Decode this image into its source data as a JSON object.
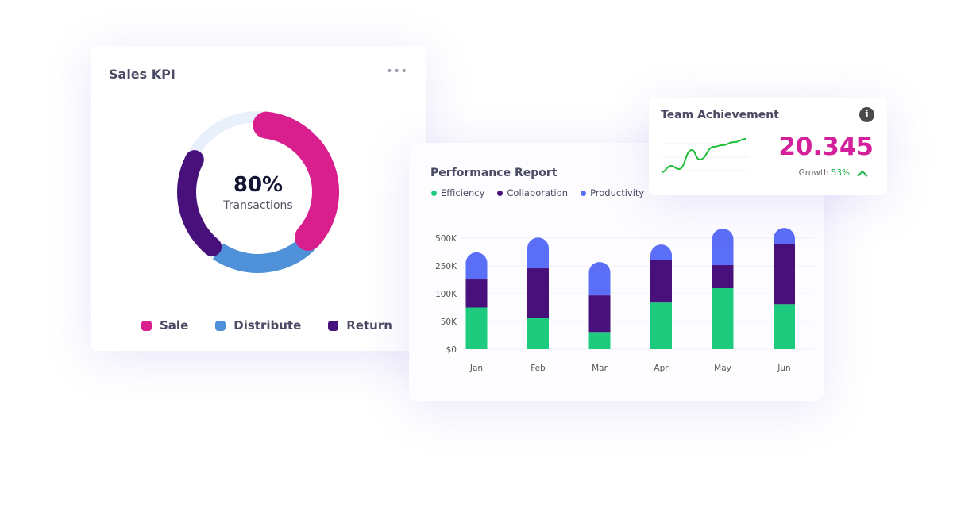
{
  "colors": {
    "sale": "#d91e8e",
    "distribute": "#4f91d8",
    "return": "#48107a",
    "track": "#e8f0fc",
    "efficiency": "#1ecb7e",
    "collaboration": "#48107a",
    "productivity": "#5b6ef6",
    "sparkline": "#1fbf3a",
    "accent": "#d4209a"
  },
  "sales_kpi": {
    "title": "Sales KPI",
    "menu_icon": "more-horizontal-icon",
    "center_value": "80%",
    "center_label": "Transactions",
    "legend": [
      {
        "label": "Sale"
      },
      {
        "label": "Distribute"
      },
      {
        "label": "Return"
      }
    ]
  },
  "team_achievement": {
    "title": "Team Achievement",
    "info_icon": "info-icon",
    "value": "20.345",
    "growth_label": "Growth",
    "growth_value": "53%",
    "trend_icon": "chevron-up-icon"
  },
  "chart_data": [
    {
      "type": "pie",
      "variant": "donut",
      "categories": [
        "Sale",
        "Distribute",
        "Return"
      ],
      "arcs_deg": [
        [
          7,
          132
        ],
        [
          135,
          214
        ],
        [
          220,
          297
        ]
      ],
      "center_text": "80%"
    },
    {
      "type": "bar",
      "stacked": true,
      "title": "Performance Report",
      "categories": [
        "Jan",
        "Feb",
        "Mar",
        "Apr",
        "May",
        "Jun"
      ],
      "yticks": [
        "$0",
        "50K",
        "100K",
        "250K",
        "500K"
      ],
      "ytick_values": [
        0,
        50,
        100,
        250,
        500
      ],
      "y_scale": "piecewise (equally spaced ticks)",
      "units": "K",
      "grid": true,
      "legend_position": "top-left",
      "series": [
        {
          "name": "Efficiency",
          "values": [
            75,
            57,
            31,
            84,
            130,
            81
          ]
        },
        {
          "name": "Collaboration",
          "values": [
            102,
            180,
            66,
            217,
            127,
            369
          ]
        },
        {
          "name": "Productivity",
          "values": [
            195,
            268,
            188,
            141,
            328,
            142
          ]
        }
      ]
    },
    {
      "type": "line",
      "variant": "sparkline",
      "values": [
        1,
        3,
        2,
        8,
        5,
        9,
        9.5,
        10.5,
        11.5
      ]
    }
  ]
}
